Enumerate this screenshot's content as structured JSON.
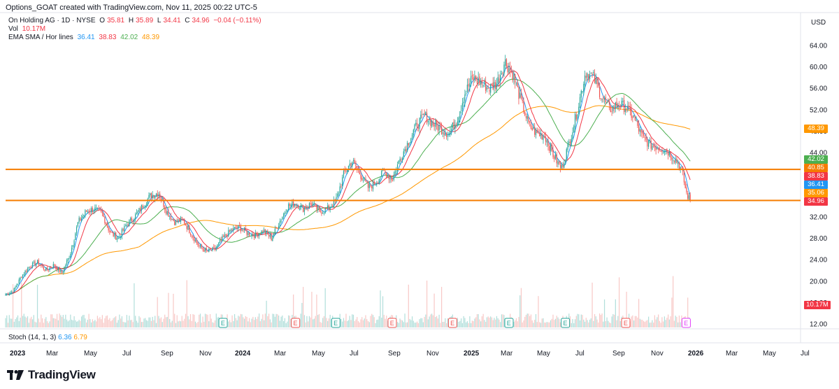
{
  "caption": "Options_GOAT created with TradingView.com, Nov 11, 2025 00:22 UTC-5",
  "legend": {
    "symbol": "On Holding AG · 1D · NYSE",
    "o_label": "O",
    "o_value": "35.81",
    "h_label": "H",
    "h_value": "35.89",
    "l_label": "L",
    "l_value": "34.41",
    "c_label": "C",
    "c_value": "34.96",
    "change": "−0.04 (−0.11%)",
    "vol_label": "Vol",
    "vol_value": "10.17M",
    "ind_label": "EMA SMA / Hor lines",
    "ind_values": [
      "36.41",
      "38.83",
      "42.02",
      "48.39"
    ]
  },
  "stoch": {
    "label": "Stoch (14, 1, 3)",
    "k": "6.36",
    "d": "6.79"
  },
  "currency": "USD",
  "brand": "TradingView",
  "colors": {
    "up": "#26a69a",
    "down": "#ef5350",
    "ema": "#2196f3",
    "sma_short": "#f23645",
    "sma_mid": "#4caf50",
    "sma_long": "#ff9800",
    "hline": "#f57c00",
    "vol_up": "#b2dfdb",
    "vol_down": "#f8c9c7"
  },
  "chart_data": {
    "type": "candlestick",
    "y_axis": {
      "ticks": [
        "64.00",
        "60.00",
        "56.00",
        "52.00",
        "48.00",
        "44.00",
        "40.00",
        "36.00",
        "32.00",
        "28.00",
        "24.00",
        "20.00",
        "16.00",
        "12.00"
      ],
      "range": [
        12,
        66
      ]
    },
    "x_axis": {
      "ticks": [
        "2023",
        "Mar",
        "May",
        "Jul",
        "Sep",
        "Nov",
        "2024",
        "Mar",
        "May",
        "Jul",
        "Sep",
        "Nov",
        "2025",
        "Mar",
        "May",
        "Jul",
        "Sep",
        "Nov",
        "2026",
        "Mar",
        "May",
        "Jul"
      ]
    },
    "price_labels": [
      {
        "value": "48.39",
        "color": "#ff9800"
      },
      {
        "value": "42.02",
        "color": "#4caf50"
      },
      {
        "value": "40.85",
        "color": "#f57c00"
      },
      {
        "value": "38.83",
        "color": "#f23645"
      },
      {
        "value": "36.41",
        "color": "#2196f3"
      },
      {
        "value": "35.06",
        "color": "#ff9800"
      },
      {
        "value": "34.96",
        "color": "#f23645"
      }
    ],
    "volume_label": {
      "value": "10.17M",
      "color": "#f23645"
    },
    "horizontal_lines": [
      40.85,
      35.06
    ],
    "earnings_markers": [
      {
        "pos": 0.27,
        "type": "up"
      },
      {
        "pos": 0.36,
        "type": "down"
      },
      {
        "pos": 0.41,
        "type": "up"
      },
      {
        "pos": 0.48,
        "type": "down"
      },
      {
        "pos": 0.555,
        "type": "down"
      },
      {
        "pos": 0.625,
        "type": "up"
      },
      {
        "pos": 0.695,
        "type": "up"
      },
      {
        "pos": 0.77,
        "type": "down"
      },
      {
        "pos": 0.845,
        "type": "next"
      }
    ],
    "earnings_letter": "E",
    "price_path": [
      {
        "x": 0.0,
        "p": 17.5
      },
      {
        "x": 0.01,
        "p": 18.2
      },
      {
        "x": 0.02,
        "p": 21.0
      },
      {
        "x": 0.03,
        "p": 22.8
      },
      {
        "x": 0.04,
        "p": 23.5
      },
      {
        "x": 0.05,
        "p": 22.0
      },
      {
        "x": 0.06,
        "p": 23.0
      },
      {
        "x": 0.07,
        "p": 21.5
      },
      {
        "x": 0.08,
        "p": 25.0
      },
      {
        "x": 0.09,
        "p": 31.0
      },
      {
        "x": 0.1,
        "p": 33.0
      },
      {
        "x": 0.11,
        "p": 33.5
      },
      {
        "x": 0.12,
        "p": 32.5
      },
      {
        "x": 0.13,
        "p": 29.0
      },
      {
        "x": 0.14,
        "p": 28.0
      },
      {
        "x": 0.15,
        "p": 30.5
      },
      {
        "x": 0.16,
        "p": 32.0
      },
      {
        "x": 0.17,
        "p": 34.0
      },
      {
        "x": 0.18,
        "p": 36.0
      },
      {
        "x": 0.19,
        "p": 36.5
      },
      {
        "x": 0.2,
        "p": 33.0
      },
      {
        "x": 0.21,
        "p": 31.0
      },
      {
        "x": 0.22,
        "p": 31.5
      },
      {
        "x": 0.23,
        "p": 29.0
      },
      {
        "x": 0.24,
        "p": 26.5
      },
      {
        "x": 0.25,
        "p": 25.5
      },
      {
        "x": 0.26,
        "p": 26.0
      },
      {
        "x": 0.27,
        "p": 28.0
      },
      {
        "x": 0.28,
        "p": 29.5
      },
      {
        "x": 0.29,
        "p": 30.0
      },
      {
        "x": 0.3,
        "p": 29.0
      },
      {
        "x": 0.31,
        "p": 28.5
      },
      {
        "x": 0.32,
        "p": 29.5
      },
      {
        "x": 0.33,
        "p": 28.0
      },
      {
        "x": 0.34,
        "p": 31.0
      },
      {
        "x": 0.35,
        "p": 34.0
      },
      {
        "x": 0.36,
        "p": 34.5
      },
      {
        "x": 0.37,
        "p": 33.5
      },
      {
        "x": 0.38,
        "p": 34.5
      },
      {
        "x": 0.39,
        "p": 33.0
      },
      {
        "x": 0.4,
        "p": 33.5
      },
      {
        "x": 0.41,
        "p": 35.0
      },
      {
        "x": 0.42,
        "p": 40.0
      },
      {
        "x": 0.43,
        "p": 42.5
      },
      {
        "x": 0.44,
        "p": 40.0
      },
      {
        "x": 0.45,
        "p": 37.5
      },
      {
        "x": 0.46,
        "p": 38.5
      },
      {
        "x": 0.47,
        "p": 40.5
      },
      {
        "x": 0.48,
        "p": 39.0
      },
      {
        "x": 0.49,
        "p": 43.0
      },
      {
        "x": 0.5,
        "p": 46.0
      },
      {
        "x": 0.51,
        "p": 49.0
      },
      {
        "x": 0.52,
        "p": 51.0
      },
      {
        "x": 0.53,
        "p": 49.5
      },
      {
        "x": 0.54,
        "p": 48.5
      },
      {
        "x": 0.55,
        "p": 47.5
      },
      {
        "x": 0.56,
        "p": 50.0
      },
      {
        "x": 0.57,
        "p": 55.0
      },
      {
        "x": 0.58,
        "p": 58.0
      },
      {
        "x": 0.59,
        "p": 57.0
      },
      {
        "x": 0.6,
        "p": 56.0
      },
      {
        "x": 0.61,
        "p": 57.0
      },
      {
        "x": 0.62,
        "p": 61.0
      },
      {
        "x": 0.63,
        "p": 58.5
      },
      {
        "x": 0.64,
        "p": 53.5
      },
      {
        "x": 0.65,
        "p": 49.0
      },
      {
        "x": 0.66,
        "p": 47.5
      },
      {
        "x": 0.67,
        "p": 47.0
      },
      {
        "x": 0.68,
        "p": 43.5
      },
      {
        "x": 0.69,
        "p": 41.0
      },
      {
        "x": 0.7,
        "p": 46.0
      },
      {
        "x": 0.71,
        "p": 52.0
      },
      {
        "x": 0.72,
        "p": 59.0
      },
      {
        "x": 0.73,
        "p": 58.0
      },
      {
        "x": 0.74,
        "p": 54.5
      },
      {
        "x": 0.75,
        "p": 52.0
      },
      {
        "x": 0.76,
        "p": 53.0
      },
      {
        "x": 0.77,
        "p": 52.5
      },
      {
        "x": 0.78,
        "p": 50.5
      },
      {
        "x": 0.79,
        "p": 47.0
      },
      {
        "x": 0.8,
        "p": 45.5
      },
      {
        "x": 0.81,
        "p": 45.0
      },
      {
        "x": 0.82,
        "p": 44.5
      },
      {
        "x": 0.83,
        "p": 43.0
      },
      {
        "x": 0.835,
        "p": 42.0
      },
      {
        "x": 0.84,
        "p": 40.5
      },
      {
        "x": 0.845,
        "p": 36.5
      },
      {
        "x": 0.85,
        "p": 34.96
      }
    ]
  }
}
